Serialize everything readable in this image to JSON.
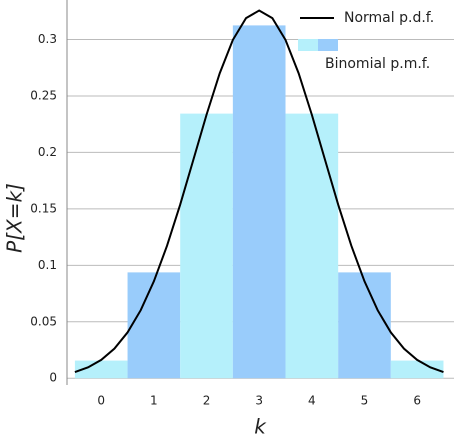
{
  "chart_data": {
    "type": "bar",
    "x_label": "k",
    "y_label": "P[X=k]",
    "x": [
      0,
      1,
      2,
      3,
      4,
      5,
      6
    ],
    "series": [
      {
        "name": "Binomial p.m.f.",
        "type": "bar",
        "colors": [
          "#b5f0fb",
          "#99ccfb"
        ],
        "values": [
          0.015625,
          0.09375,
          0.234375,
          0.3125,
          0.234375,
          0.09375,
          0.015625
        ]
      },
      {
        "name": "Normal p.d.f.",
        "type": "line",
        "color": "#000000",
        "x": [
          -0.5,
          -0.25,
          0,
          0.25,
          0.5,
          0.75,
          1,
          1.25,
          1.5,
          1.75,
          2,
          2.25,
          2.5,
          2.75,
          3,
          3.25,
          3.5,
          3.75,
          4,
          4.25,
          4.5,
          4.75,
          5,
          5.25,
          5.5,
          5.75,
          6,
          6.25,
          6.5
        ],
        "values": [
          0.00549,
          0.00963,
          0.01622,
          0.02618,
          0.04055,
          0.06025,
          0.08586,
          0.11735,
          0.15385,
          0.19348,
          0.23337,
          0.27001,
          0.29966,
          0.31898,
          0.3257,
          0.31898,
          0.29966,
          0.27001,
          0.23337,
          0.19348,
          0.15385,
          0.11735,
          0.08586,
          0.06025,
          0.04055,
          0.02618,
          0.01622,
          0.00963,
          0.00549
        ]
      }
    ],
    "xlim": [
      -0.65,
      6.7
    ],
    "xticks": [
      0,
      1,
      2,
      3,
      4,
      5,
      6
    ],
    "ylim": [
      -0.006,
      0.335
    ],
    "yticks": [
      0,
      0.05,
      0.1,
      0.15,
      0.2,
      0.25,
      0.3
    ],
    "grid": true,
    "legend": "upper right"
  }
}
